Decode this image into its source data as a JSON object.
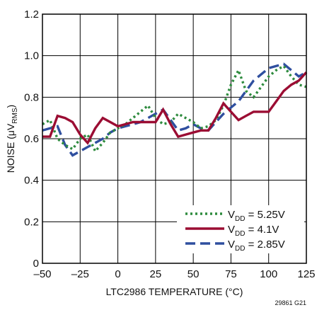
{
  "chart_data": {
    "type": "line",
    "xlabel": "LTC2986 TEMPERATURE (°C)",
    "ylabel": {
      "main": "NOISE (μV",
      "sub": "RMS",
      "end": ")"
    },
    "xlim": [
      -50,
      125
    ],
    "ylim": [
      0,
      1.2
    ],
    "xticks": [
      -50,
      -25,
      0,
      25,
      50,
      75,
      100,
      125
    ],
    "yticks": [
      0,
      0.2,
      0.4,
      0.6,
      0.8,
      1.0,
      1.2
    ],
    "xtick_labels": [
      "–50",
      "–25",
      "0",
      "25",
      "50",
      "75",
      "100",
      "125"
    ],
    "ytick_labels": [
      "0",
      "0.2",
      "0.4",
      "0.6",
      "0.8",
      "1.0",
      "1.2"
    ],
    "grid": true,
    "legend_position": "bottom-right",
    "figure_id": "29861 G21",
    "series": [
      {
        "legend": {
          "main": "V",
          "sub": "DD",
          "rest": " = 5.25V"
        },
        "color": "#2e8b3e",
        "style": "dotted",
        "x": [
          -50,
          -45,
          -40,
          -35,
          -30,
          -25,
          -20,
          -15,
          -10,
          -5,
          0,
          5,
          10,
          15,
          20,
          25,
          30,
          35,
          40,
          45,
          50,
          55,
          60,
          65,
          70,
          75,
          80,
          85,
          90,
          95,
          100,
          105,
          110,
          115,
          120,
          125
        ],
        "y": [
          0.67,
          0.69,
          0.6,
          0.57,
          0.55,
          0.6,
          0.62,
          0.54,
          0.58,
          0.63,
          0.65,
          0.67,
          0.7,
          0.73,
          0.76,
          0.7,
          0.67,
          0.68,
          0.72,
          0.7,
          0.68,
          0.65,
          0.66,
          0.69,
          0.76,
          0.86,
          0.93,
          0.83,
          0.8,
          0.85,
          0.9,
          0.93,
          0.95,
          0.9,
          0.86,
          0.85
        ]
      },
      {
        "legend": {
          "main": "V",
          "sub": "DD",
          "rest": " = 4.1V"
        },
        "color": "#9b0d33",
        "style": "solid",
        "x": [
          -50,
          -45,
          -40,
          -35,
          -30,
          -25,
          -20,
          -15,
          -10,
          -5,
          0,
          5,
          10,
          15,
          20,
          25,
          30,
          35,
          40,
          45,
          50,
          55,
          60,
          65,
          70,
          75,
          80,
          85,
          90,
          95,
          100,
          105,
          110,
          115,
          120,
          125
        ],
        "y": [
          0.61,
          0.61,
          0.71,
          0.7,
          0.68,
          0.62,
          0.58,
          0.65,
          0.7,
          0.68,
          0.66,
          0.67,
          0.68,
          0.68,
          0.68,
          0.68,
          0.74,
          0.67,
          0.61,
          0.62,
          0.63,
          0.64,
          0.64,
          0.7,
          0.77,
          0.73,
          0.69,
          0.71,
          0.73,
          0.73,
          0.73,
          0.78,
          0.83,
          0.86,
          0.88,
          0.92
        ]
      },
      {
        "legend": {
          "main": "V",
          "sub": "DD",
          "rest": " = 2.85V"
        },
        "color": "#2f4f9f",
        "style": "dashed",
        "x": [
          -50,
          -45,
          -40,
          -35,
          -30,
          -25,
          -20,
          -15,
          -10,
          -5,
          0,
          5,
          10,
          15,
          20,
          25,
          30,
          35,
          40,
          45,
          50,
          55,
          60,
          65,
          70,
          75,
          80,
          85,
          90,
          95,
          100,
          105,
          110,
          115,
          120,
          125
        ],
        "y": [
          0.64,
          0.65,
          0.66,
          0.57,
          0.52,
          0.54,
          0.56,
          0.58,
          0.6,
          0.63,
          0.65,
          0.66,
          0.67,
          0.68,
          0.7,
          0.72,
          0.74,
          0.69,
          0.64,
          0.65,
          0.67,
          0.65,
          0.64,
          0.68,
          0.72,
          0.75,
          0.78,
          0.83,
          0.88,
          0.91,
          0.94,
          0.95,
          0.96,
          0.93,
          0.9,
          0.92
        ]
      }
    ]
  }
}
